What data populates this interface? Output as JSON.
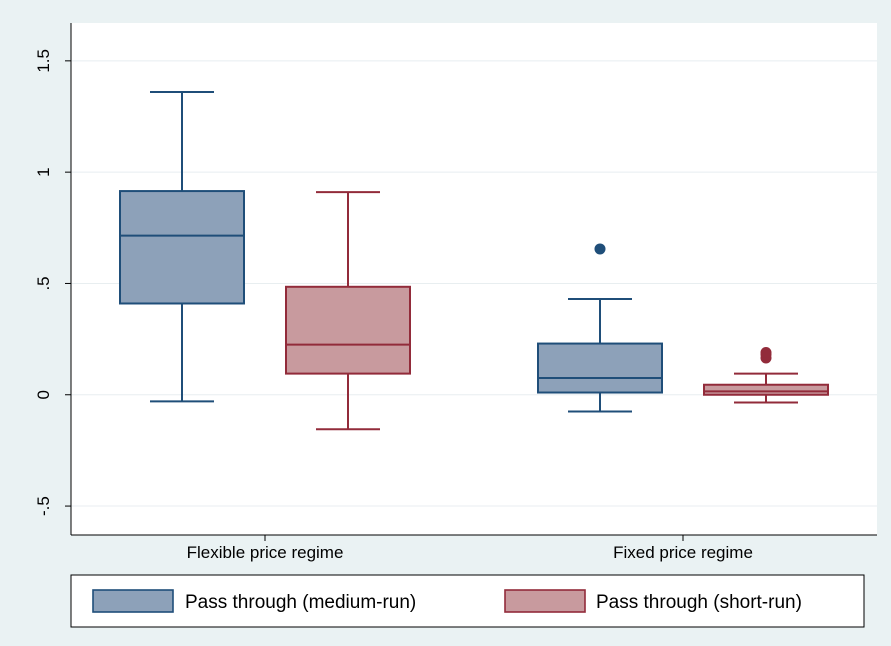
{
  "chart_data": {
    "type": "box",
    "groups": [
      "Flexible price regime",
      "Fixed price regime"
    ],
    "series": [
      {
        "name": "Pass through (medium-run)",
        "fill": "#8da1b9",
        "stroke": "#1f4e79",
        "boxes": [
          {
            "min": -0.03,
            "q1": 0.41,
            "median": 0.715,
            "q3": 0.915,
            "max": 1.36,
            "outliers": []
          },
          {
            "min": -0.075,
            "q1": 0.01,
            "median": 0.075,
            "q3": 0.23,
            "max": 0.43,
            "outliers": [
              0.655
            ]
          }
        ]
      },
      {
        "name": "Pass through (short-run)",
        "fill": "#c89a9e",
        "stroke": "#922b3a",
        "boxes": [
          {
            "min": -0.155,
            "q1": 0.095,
            "median": 0.225,
            "q3": 0.485,
            "max": 0.91,
            "outliers": []
          },
          {
            "min": -0.035,
            "q1": 0.0,
            "median": 0.015,
            "q3": 0.045,
            "max": 0.095,
            "outliers": [
              0.165,
              0.18,
              0.19
            ]
          }
        ]
      }
    ],
    "y_ticks": [
      -0.5,
      0,
      0.5,
      1,
      1.5
    ],
    "y_tick_labels": [
      "-.5",
      "0",
      ".5",
      "1",
      "1.5"
    ],
    "ylim": [
      -0.63,
      1.67
    ],
    "grid": true,
    "legend_position": "bottom"
  }
}
